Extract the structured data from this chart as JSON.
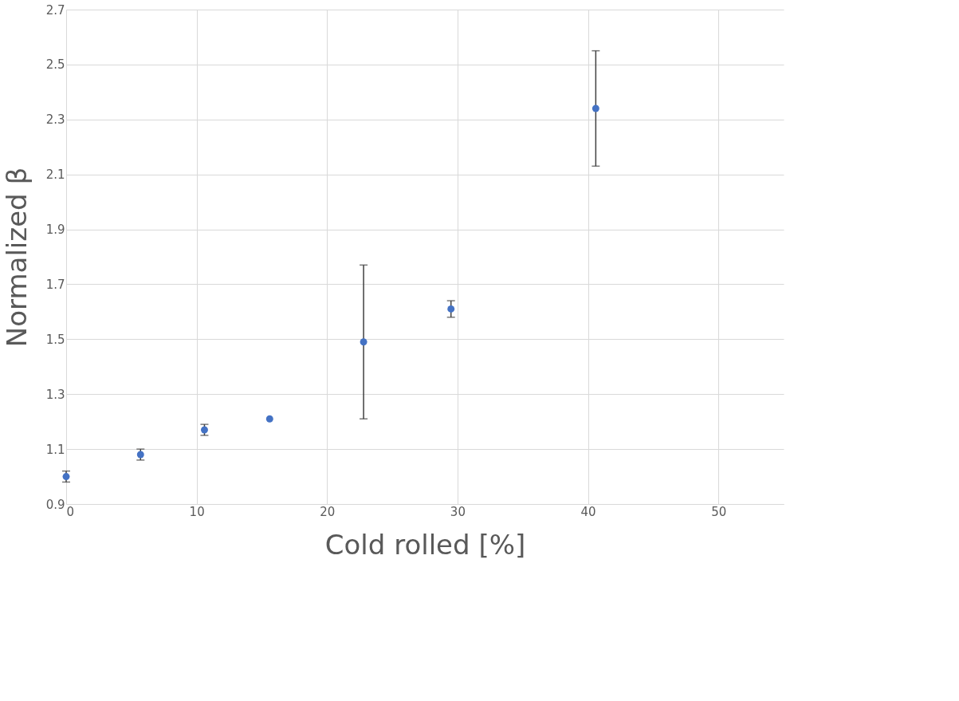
{
  "chart_data": {
    "type": "scatter",
    "xlabel": "Cold rolled [%]",
    "ylabel": "Normalized β",
    "x": [
      0,
      5.7,
      10.6,
      15.6,
      22.8,
      29.5,
      40.6
    ],
    "series": [
      {
        "color": "#4472c4",
        "values": [
          1.0,
          1.08,
          1.17,
          1.21,
          1.49,
          1.61,
          2.34
        ],
        "errors": [
          [
            0.98,
            1.02
          ],
          [
            1.06,
            1.1
          ],
          [
            1.15,
            1.19
          ],
          null,
          [
            1.21,
            1.77
          ],
          [
            1.58,
            1.64
          ],
          [
            2.13,
            2.55
          ]
        ]
      }
    ],
    "xlim": [
      0,
      55
    ],
    "xticks": [
      0,
      10,
      20,
      30,
      40,
      50
    ],
    "ylim": [
      0.9,
      2.7
    ],
    "yticks": [
      0.9,
      1.1,
      1.3,
      1.5,
      1.7,
      1.9,
      2.1,
      2.3,
      2.5,
      2.7
    ],
    "grid": true,
    "marker": "circle",
    "legend": false
  }
}
